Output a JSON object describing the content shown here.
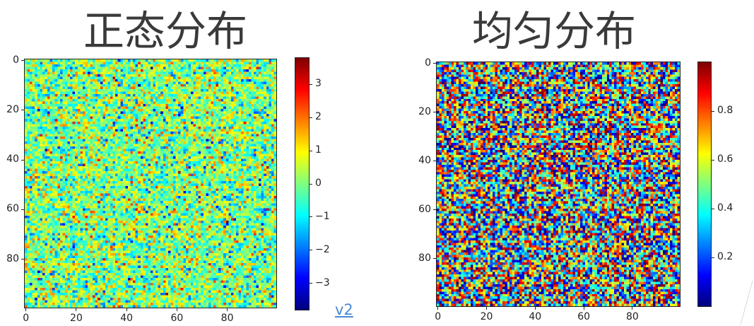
{
  "link_label": "v2",
  "chart_data": [
    {
      "type": "heatmap",
      "title": "正态分布",
      "xlabel": "",
      "ylabel": "",
      "grid_size": [
        100,
        100
      ],
      "distribution": "normal",
      "mean": 0,
      "std": 1,
      "xlim": [
        0,
        99
      ],
      "ylim": [
        99,
        0
      ],
      "x_ticks": [
        0,
        20,
        40,
        60,
        80
      ],
      "y_ticks": [
        0,
        20,
        40,
        60,
        80
      ],
      "colormap": "jet",
      "colorbar_range": [
        -3.8,
        3.8
      ],
      "colorbar_ticks": [
        "3",
        "2",
        "1",
        "0",
        "−1",
        "−2",
        "−3"
      ],
      "colorbar_tick_values": [
        3,
        2,
        1,
        0,
        -1,
        -2,
        -3
      ],
      "legend": "colorbar-right"
    },
    {
      "type": "heatmap",
      "title": "均匀分布",
      "xlabel": "",
      "ylabel": "",
      "grid_size": [
        100,
        100
      ],
      "distribution": "uniform",
      "xlim": [
        0,
        99
      ],
      "ylim": [
        99,
        0
      ],
      "x_ticks": [
        0,
        20,
        40,
        60,
        80
      ],
      "y_ticks": [
        0,
        20,
        40,
        60,
        80
      ],
      "colormap": "jet",
      "colorbar_range": [
        0,
        1
      ],
      "colorbar_ticks": [
        "0.8",
        "0.6",
        "0.4",
        "0.2"
      ],
      "colorbar_tick_values": [
        0.8,
        0.6,
        0.4,
        0.2
      ],
      "legend": "colorbar-right"
    }
  ]
}
